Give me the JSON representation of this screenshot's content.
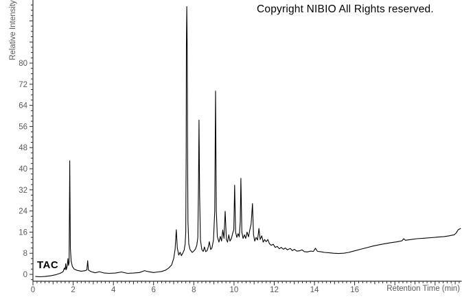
{
  "header": {
    "copyright": "Copyright NIBIO All Rights reserved."
  },
  "chart_data": {
    "type": "line",
    "title": "",
    "trace_label": "TAC",
    "xlabel": "Retention Time (min)",
    "ylabel": "Relative Intensity",
    "x_tick_labels": [
      0,
      2,
      4,
      6,
      8,
      10,
      12,
      14,
      16
    ],
    "y_tick_labels": [
      0,
      8,
      16,
      24,
      32,
      40,
      48,
      56,
      64,
      72,
      80
    ],
    "x_minor_step": 0.2,
    "x_major_step": 2,
    "y_minor_step": 2,
    "y_major_step": 8,
    "xlim": [
      0,
      21.3
    ],
    "ylim": [
      -2.6,
      103.9
    ],
    "grid": false,
    "legend_position": "none",
    "colors": {
      "trace": "#000000",
      "axis": "#2a2a2a",
      "tick_label": "#595959",
      "text": "#000000"
    },
    "major_peaks": [
      {
        "rt": 1.83,
        "intensity": 43
      },
      {
        "rt": 2.72,
        "intensity": 5
      },
      {
        "rt": 7.13,
        "intensity": 17
      },
      {
        "rt": 7.65,
        "intensity": 101
      },
      {
        "rt": 8.26,
        "intensity": 58
      },
      {
        "rt": 9.08,
        "intensity": 69
      },
      {
        "rt": 9.56,
        "intensity": 24
      },
      {
        "rt": 10.03,
        "intensity": 34
      },
      {
        "rt": 10.34,
        "intensity": 36
      },
      {
        "rt": 10.92,
        "intensity": 27
      }
    ],
    "points": [
      [
        0.12,
        -0.8
      ],
      [
        0.35,
        -0.9
      ],
      [
        0.6,
        -0.8
      ],
      [
        0.9,
        -0.5
      ],
      [
        1.15,
        -0.1
      ],
      [
        1.35,
        0.4
      ],
      [
        1.5,
        1.0
      ],
      [
        1.56,
        2.4
      ],
      [
        1.6,
        1.8
      ],
      [
        1.63,
        4.0
      ],
      [
        1.66,
        1.8
      ],
      [
        1.7,
        3.0
      ],
      [
        1.74,
        6.0
      ],
      [
        1.77,
        3.4
      ],
      [
        1.8,
        4.6
      ],
      [
        1.83,
        43.0
      ],
      [
        1.86,
        10.0
      ],
      [
        1.9,
        5.0
      ],
      [
        1.96,
        3.0
      ],
      [
        2.05,
        2.0
      ],
      [
        2.2,
        1.5
      ],
      [
        2.4,
        1.2
      ],
      [
        2.6,
        1.4
      ],
      [
        2.68,
        1.7
      ],
      [
        2.72,
        5.2
      ],
      [
        2.76,
        1.6
      ],
      [
        2.9,
        1.0
      ],
      [
        3.1,
        0.6
      ],
      [
        3.3,
        1.0
      ],
      [
        3.55,
        0.5
      ],
      [
        3.8,
        0.4
      ],
      [
        4.1,
        0.5
      ],
      [
        4.4,
        0.9
      ],
      [
        4.7,
        0.4
      ],
      [
        5.0,
        0.5
      ],
      [
        5.3,
        0.7
      ],
      [
        5.55,
        1.4
      ],
      [
        5.75,
        1.0
      ],
      [
        6.0,
        0.7
      ],
      [
        6.2,
        0.9
      ],
      [
        6.4,
        1.1
      ],
      [
        6.6,
        1.6
      ],
      [
        6.75,
        2.4
      ],
      [
        6.9,
        3.6
      ],
      [
        7.0,
        6.0
      ],
      [
        7.07,
        9.5
      ],
      [
        7.13,
        16.9
      ],
      [
        7.18,
        10.0
      ],
      [
        7.25,
        7.3
      ],
      [
        7.32,
        8.4
      ],
      [
        7.38,
        7.1
      ],
      [
        7.45,
        8.0
      ],
      [
        7.52,
        9.2
      ],
      [
        7.57,
        11.5
      ],
      [
        7.6,
        16.0
      ],
      [
        7.62,
        45.0
      ],
      [
        7.63,
        86.0
      ],
      [
        7.65,
        101.4
      ],
      [
        7.67,
        86.0
      ],
      [
        7.69,
        48.0
      ],
      [
        7.71,
        20.0
      ],
      [
        7.75,
        11.5
      ],
      [
        7.82,
        9.3
      ],
      [
        7.92,
        8.3
      ],
      [
        8.0,
        8.8
      ],
      [
        8.08,
        9.6
      ],
      [
        8.15,
        11.0
      ],
      [
        8.2,
        14.0
      ],
      [
        8.23,
        32.0
      ],
      [
        8.26,
        58.4
      ],
      [
        8.29,
        30.0
      ],
      [
        8.33,
        13.0
      ],
      [
        8.4,
        9.4
      ],
      [
        8.47,
        8.7
      ],
      [
        8.53,
        10.4
      ],
      [
        8.59,
        8.6
      ],
      [
        8.66,
        9.0
      ],
      [
        8.72,
        10.4
      ],
      [
        8.77,
        12.4
      ],
      [
        8.84,
        9.4
      ],
      [
        8.9,
        10.0
      ],
      [
        8.98,
        13.0
      ],
      [
        9.04,
        24.0
      ],
      [
        9.08,
        69.4
      ],
      [
        9.12,
        24.0
      ],
      [
        9.17,
        14.3
      ],
      [
        9.25,
        12.2
      ],
      [
        9.32,
        14.4
      ],
      [
        9.38,
        12.6
      ],
      [
        9.44,
        16.8
      ],
      [
        9.5,
        13.6
      ],
      [
        9.56,
        23.9
      ],
      [
        9.62,
        13.2
      ],
      [
        9.68,
        12.2
      ],
      [
        9.74,
        15.0
      ],
      [
        9.8,
        12.6
      ],
      [
        9.87,
        13.6
      ],
      [
        9.93,
        15.4
      ],
      [
        9.99,
        17.0
      ],
      [
        10.03,
        33.8
      ],
      [
        10.08,
        16.0
      ],
      [
        10.14,
        14.0
      ],
      [
        10.2,
        15.4
      ],
      [
        10.26,
        14.2
      ],
      [
        10.31,
        20.0
      ],
      [
        10.34,
        36.4
      ],
      [
        10.39,
        16.0
      ],
      [
        10.45,
        13.6
      ],
      [
        10.52,
        15.0
      ],
      [
        10.58,
        13.6
      ],
      [
        10.65,
        16.0
      ],
      [
        10.72,
        14.2
      ],
      [
        10.78,
        16.6
      ],
      [
        10.85,
        19.0
      ],
      [
        10.92,
        26.8
      ],
      [
        10.97,
        15.0
      ],
      [
        11.03,
        12.6
      ],
      [
        11.1,
        14.0
      ],
      [
        11.17,
        13.0
      ],
      [
        11.24,
        17.4
      ],
      [
        11.3,
        13.2
      ],
      [
        11.38,
        14.6
      ],
      [
        11.45,
        12.2
      ],
      [
        11.52,
        13.2
      ],
      [
        11.6,
        12.4
      ],
      [
        11.68,
        13.2
      ],
      [
        11.76,
        11.6
      ],
      [
        11.85,
        11.0
      ],
      [
        11.95,
        11.4
      ],
      [
        12.05,
        10.2
      ],
      [
        12.15,
        10.6
      ],
      [
        12.25,
        9.7
      ],
      [
        12.35,
        10.2
      ],
      [
        12.45,
        9.5
      ],
      [
        12.55,
        10.0
      ],
      [
        12.65,
        9.3
      ],
      [
        12.8,
        9.8
      ],
      [
        12.9,
        9.0
      ],
      [
        13.0,
        9.5
      ],
      [
        13.12,
        8.8
      ],
      [
        13.25,
        8.9
      ],
      [
        13.38,
        9.3
      ],
      [
        13.5,
        8.6
      ],
      [
        13.65,
        8.5
      ],
      [
        13.8,
        8.8
      ],
      [
        13.95,
        8.7
      ],
      [
        14.05,
        9.9
      ],
      [
        14.15,
        8.7
      ],
      [
        14.3,
        8.6
      ],
      [
        14.5,
        8.3
      ],
      [
        14.7,
        8.2
      ],
      [
        14.95,
        8.0
      ],
      [
        15.2,
        7.9
      ],
      [
        15.45,
        8.0
      ],
      [
        15.7,
        8.3
      ],
      [
        16.0,
        8.9
      ],
      [
        16.3,
        9.5
      ],
      [
        16.6,
        10.1
      ],
      [
        16.9,
        10.7
      ],
      [
        17.2,
        11.2
      ],
      [
        17.5,
        11.6
      ],
      [
        17.8,
        12.0
      ],
      [
        18.1,
        12.3
      ],
      [
        18.35,
        12.7
      ],
      [
        18.44,
        13.5
      ],
      [
        18.52,
        12.9
      ],
      [
        18.8,
        13.2
      ],
      [
        19.1,
        13.5
      ],
      [
        19.45,
        13.7
      ],
      [
        19.8,
        13.9
      ],
      [
        20.1,
        14.1
      ],
      [
        20.45,
        14.3
      ],
      [
        20.7,
        14.6
      ],
      [
        20.95,
        15.0
      ],
      [
        21.05,
        15.7
      ],
      [
        21.15,
        16.9
      ],
      [
        21.28,
        17.4
      ]
    ]
  }
}
